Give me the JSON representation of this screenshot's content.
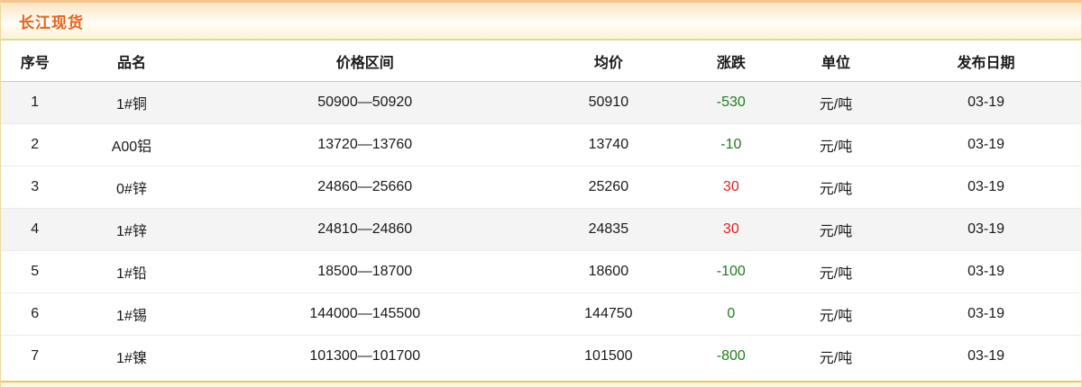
{
  "panel": {
    "title": "长江现货",
    "accent_color": "#e8611c"
  },
  "table": {
    "columns": [
      "序号",
      "品名",
      "价格区间",
      "均价",
      "涨跌",
      "单位",
      "发布日期"
    ],
    "change_colors": {
      "up": "#e02222",
      "down": "#1e7d1e"
    },
    "rows": [
      {
        "no": "1",
        "name": "1#铜",
        "range": "50900—50920",
        "avg": "50910",
        "change": "-530",
        "change_color": "green",
        "unit": "元/吨",
        "date": "03-19"
      },
      {
        "no": "2",
        "name": "A00铝",
        "range": "13720—13760",
        "avg": "13740",
        "change": "-10",
        "change_color": "green",
        "unit": "元/吨",
        "date": "03-19"
      },
      {
        "no": "3",
        "name": "0#锌",
        "range": "24860—25660",
        "avg": "25260",
        "change": "30",
        "change_color": "red",
        "unit": "元/吨",
        "date": "03-19"
      },
      {
        "no": "4",
        "name": "1#锌",
        "range": "24810—24860",
        "avg": "24835",
        "change": "30",
        "change_color": "red",
        "unit": "元/吨",
        "date": "03-19"
      },
      {
        "no": "5",
        "name": "1#铅",
        "range": "18500—18700",
        "avg": "18600",
        "change": "-100",
        "change_color": "green",
        "unit": "元/吨",
        "date": "03-19"
      },
      {
        "no": "6",
        "name": "1#锡",
        "range": "144000—145500",
        "avg": "144750",
        "change": "0",
        "change_color": "green",
        "unit": "元/吨",
        "date": "03-19"
      },
      {
        "no": "7",
        "name": "1#镍",
        "range": "101300—101700",
        "avg": "101500",
        "change": "-800",
        "change_color": "green",
        "unit": "元/吨",
        "date": "03-19"
      }
    ]
  }
}
